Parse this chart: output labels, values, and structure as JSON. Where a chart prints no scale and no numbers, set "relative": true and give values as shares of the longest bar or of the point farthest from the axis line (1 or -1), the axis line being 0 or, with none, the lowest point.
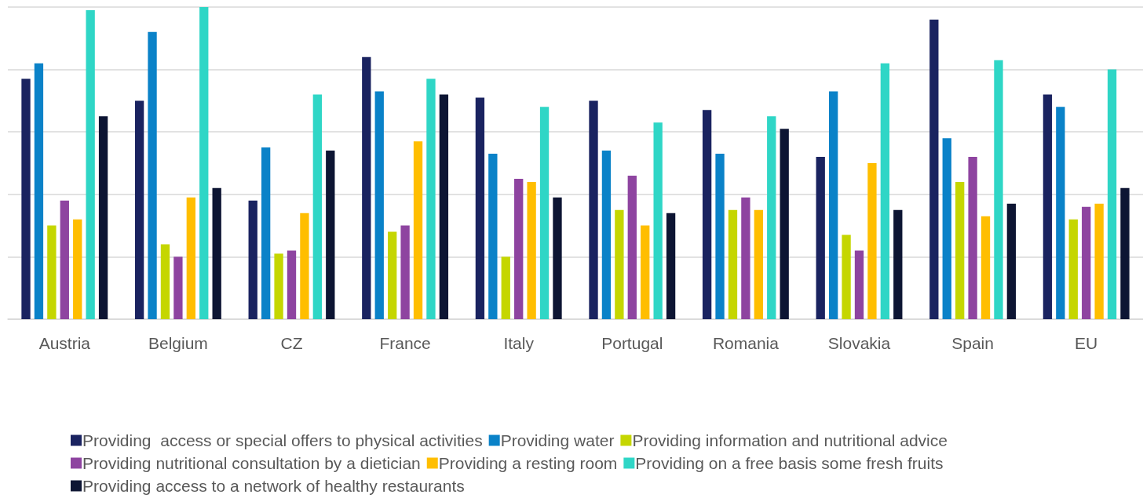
{
  "chart_data": {
    "type": "bar",
    "relative": true,
    "grid": true,
    "legend": "bottom",
    "categories": [
      "Austria",
      "Belgium",
      "CZ",
      "France",
      "Italy",
      "Portugal",
      "Romania",
      "Slovakia",
      "Spain",
      "EU"
    ],
    "series": [
      {
        "name": "Providing  access or special offers to physical activities",
        "color": "#1a2360",
        "values": [
          0.77,
          0.7,
          0.38,
          0.84,
          0.71,
          0.7,
          0.67,
          0.52,
          0.96,
          0.72
        ]
      },
      {
        "name": "Providing water",
        "color": "#0a82c8",
        "values": [
          0.82,
          0.92,
          0.55,
          0.73,
          0.53,
          0.54,
          0.53,
          0.73,
          0.58,
          0.68
        ]
      },
      {
        "name": "Providing information and nutritional advice",
        "color": "#c5d600",
        "values": [
          0.3,
          0.24,
          0.21,
          0.28,
          0.2,
          0.35,
          0.35,
          0.27,
          0.44,
          0.32
        ]
      },
      {
        "name": "Providing nutritional consultation by a dietician",
        "color": "#8e44a0",
        "values": [
          0.38,
          0.2,
          0.22,
          0.3,
          0.45,
          0.46,
          0.39,
          0.22,
          0.52,
          0.36
        ]
      },
      {
        "name": "Providing a resting room",
        "color": "#ffbe00",
        "values": [
          0.32,
          0.39,
          0.34,
          0.57,
          0.44,
          0.3,
          0.35,
          0.5,
          0.33,
          0.37
        ]
      },
      {
        "name": "Providing on a free basis some fresh fruits",
        "color": "#2fd6c6",
        "values": [
          0.99,
          1.0,
          0.72,
          0.77,
          0.68,
          0.63,
          0.65,
          0.82,
          0.83,
          0.8
        ]
      },
      {
        "name": "Providing access to a network of healthy restaurants",
        "color": "#0d1533",
        "values": [
          0.65,
          0.42,
          0.54,
          0.72,
          0.39,
          0.34,
          0.61,
          0.35,
          0.37,
          0.42
        ]
      }
    ]
  }
}
